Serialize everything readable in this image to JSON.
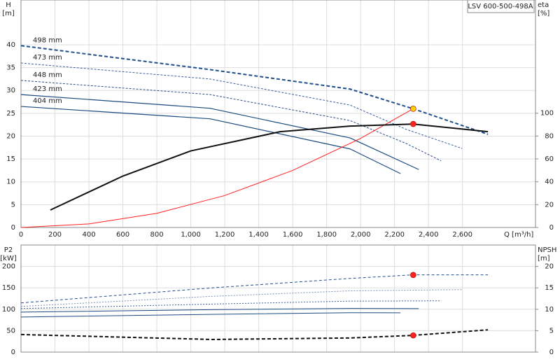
{
  "chart_data": [
    {
      "type": "line",
      "title": "LSV 600-500-498A",
      "y_label": "H",
      "y_unit": "[m]",
      "y2_label": "eta",
      "y2_unit": "[%]",
      "x_label": "Q [m³/h]",
      "xlim": [
        0,
        3030
      ],
      "xticks": [
        0,
        200,
        400,
        600,
        800,
        {
          "value": 1000,
          "label": "1,000"
        },
        {
          "value": 1200,
          "label": "1,200"
        },
        {
          "value": 1400,
          "label": "1,400"
        },
        {
          "value": 1600,
          "label": "1,600"
        },
        {
          "value": 1800,
          "label": "1,800"
        },
        {
          "value": 2000,
          "label": "2,000"
        },
        {
          "value": 2200,
          "label": "2,200"
        },
        {
          "value": 2400,
          "label": "2,400"
        },
        {
          "value": 2600,
          "label": "2,600"
        }
      ],
      "ylim": [
        0,
        49.8
      ],
      "yticks": [
        0,
        5,
        10,
        15,
        20,
        25,
        30,
        35,
        40
      ],
      "y2lim": [
        0,
        199
      ],
      "y2ticks": [
        0,
        20,
        40,
        60,
        80,
        100
      ],
      "grid": true,
      "series": [
        {
          "name": "498 mm",
          "color": "#1f4e8c",
          "dash": "5 3",
          "width": 2,
          "x": [
            0,
            1126,
            1938,
            2309,
            2750
          ],
          "values": [
            39.8,
            34.5,
            30.3,
            26.0,
            20.4
          ]
        },
        {
          "name": "473 mm",
          "color": "#3a5f9a",
          "dash": "3 2",
          "width": 1,
          "x": [
            0,
            1113,
            1938,
            2268,
            2598
          ],
          "values": [
            36.0,
            32.5,
            26.8,
            21.5,
            17.3
          ]
        },
        {
          "name": "448 mm",
          "color": "#2b4f86",
          "dash": "3 2",
          "width": 1,
          "x": [
            0,
            1113,
            1938,
            2268,
            2474
          ],
          "values": [
            32.2,
            29.1,
            23.4,
            18.4,
            14.6
          ]
        },
        {
          "name": "423 mm",
          "color": "#1a4a80",
          "dash": "",
          "width": 1.2,
          "x": [
            0,
            1113,
            1938,
            2342
          ],
          "values": [
            29.1,
            26.1,
            19.6,
            12.7
          ]
        },
        {
          "name": "404 mm",
          "color": "#1a4a80",
          "dash": "",
          "width": 1.2,
          "x": [
            0,
            1113,
            1938,
            2235
          ],
          "values": [
            26.5,
            23.8,
            17.2,
            11.8
          ]
        },
        {
          "color": "#ff2020",
          "dash": "",
          "width": 1,
          "x": [
            0,
            400,
            800,
            1200,
            1600,
            2000,
            2310
          ],
          "values": [
            0,
            0.78,
            3.1,
            7.0,
            12.5,
            19.5,
            26.0
          ]
        },
        {
          "color": "#111111",
          "dash": "",
          "width": 2,
          "axis": "y2",
          "x": [
            173,
            600,
            1000,
            1526,
            1938,
            2309,
            2750
          ],
          "values": [
            15.3,
            45,
            67,
            83.8,
            88.7,
            90.5,
            83.8
          ]
        },
        {
          "color": "#ffd000",
          "marker": true,
          "x": [
            2310
          ],
          "values": [
            26.0
          ]
        },
        {
          "color": "#ff2020",
          "marker": true,
          "axis": "y2",
          "x": [
            2310
          ],
          "values": [
            90.6
          ]
        }
      ]
    },
    {
      "type": "line",
      "y_label": "P2",
      "y_unit": "[kW]",
      "y2_label": "NPSH",
      "y2_unit": "[m]",
      "xlim": [
        0,
        3030
      ],
      "xticks": [
        0,
        200,
        400,
        600,
        800,
        1000,
        1200,
        1400,
        1600,
        1800,
        2000,
        2200,
        2400,
        2600
      ],
      "ylim": [
        0,
        250
      ],
      "yticks": [
        0,
        50,
        100,
        150,
        200
      ],
      "y2lim": [
        0,
        25
      ],
      "y2ticks": [
        0,
        5,
        10,
        15,
        20
      ],
      "grid": true,
      "series": [
        {
          "color": "#1f4e8c",
          "dash": "4 3",
          "width": 1,
          "x": [
            0,
            1126,
            1938,
            2309,
            2750
          ],
          "values": [
            114.8,
            150,
            172,
            180.3,
            180.3
          ]
        },
        {
          "color": "#7a8fb0",
          "dash": "2 2",
          "width": 1,
          "x": [
            0,
            1113,
            1938,
            2598
          ],
          "values": [
            106.6,
            130,
            143,
            145.9
          ]
        },
        {
          "color": "#3a5f9a",
          "dash": "2 2",
          "width": 1,
          "x": [
            0,
            1113,
            1938,
            2474
          ],
          "values": [
            101.6,
            112,
            119,
            119.7
          ]
        },
        {
          "color": "#1a4a80",
          "dash": "",
          "width": 1,
          "x": [
            0,
            1113,
            1938,
            2342
          ],
          "values": [
            93.4,
            99,
            102,
            101.6
          ]
        },
        {
          "color": "#1a4a80",
          "dash": "",
          "width": 1,
          "x": [
            0,
            1113,
            1938,
            2235
          ],
          "values": [
            82,
            88,
            92,
            91.8
          ]
        },
        {
          "color": "#111111",
          "dash": "5 3",
          "width": 2,
          "axis": "y2",
          "x": [
            0,
            1126,
            1938,
            2309,
            2750
          ],
          "values": [
            4.1,
            2.95,
            3.3,
            3.9,
            5.2
          ]
        },
        {
          "color": "#ff2020",
          "marker": true,
          "x": [
            2310
          ],
          "values": [
            180
          ]
        },
        {
          "color": "#ff2020",
          "marker": true,
          "axis": "y2",
          "x": [
            2310
          ],
          "values": [
            3.9
          ]
        }
      ]
    }
  ]
}
